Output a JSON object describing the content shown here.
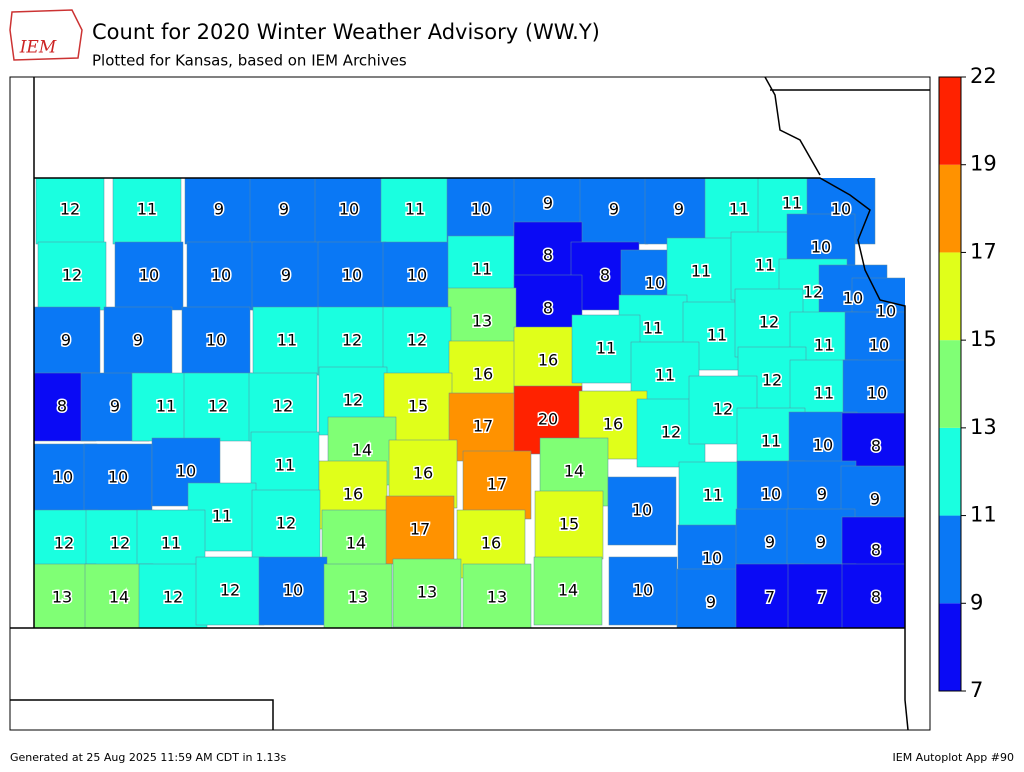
{
  "header": {
    "logo": "IEM",
    "title": "Count for 2020 Winter Weather Advisory (WW.Y)",
    "subtitle": "Plotted for Kansas, based on IEM Archives"
  },
  "colorbar": {
    "ticks": [
      7,
      9,
      11,
      13,
      15,
      17,
      19,
      22
    ],
    "colors": [
      "#0a0af5",
      "#0a78f5",
      "#1affe0",
      "#80ff75",
      "#e0ff1a",
      "#ff9200",
      "#ff2200"
    ]
  },
  "counties": [
    12,
    11,
    9,
    9,
    10,
    11,
    10,
    9,
    9,
    9,
    11,
    11,
    10,
    12,
    10,
    10,
    9,
    10,
    10,
    11,
    8,
    8,
    10,
    11,
    11,
    10,
    12,
    10,
    8,
    13,
    11,
    11,
    12,
    10,
    11,
    10,
    9,
    9,
    10,
    11,
    12,
    12,
    16,
    16,
    11,
    11,
    12,
    11,
    10,
    8,
    9,
    11,
    12,
    12,
    12,
    15,
    17,
    20,
    16,
    12,
    12,
    11,
    10,
    8,
    10,
    10,
    10,
    11,
    14,
    16,
    17,
    14,
    16,
    10,
    11,
    10,
    9,
    9,
    11,
    12,
    12,
    12,
    11,
    14,
    17,
    16,
    15,
    10,
    9,
    9,
    8,
    13,
    14,
    12,
    12,
    10,
    13,
    13,
    13,
    14,
    10,
    9,
    7,
    7,
    8
  ],
  "footer": {
    "left": "Generated at 25 Aug 2025 11:59 AM CDT in 1.13s",
    "right": "IEM Autoplot App #90"
  }
}
